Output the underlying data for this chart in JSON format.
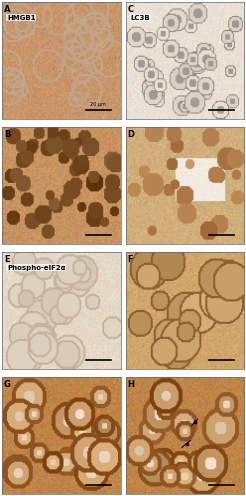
{
  "figure_width": 2.47,
  "figure_height": 5.0,
  "dpi": 100,
  "nrows": 4,
  "ncols": 2,
  "panels": [
    {
      "label": "A",
      "sublabel": "HMGB1",
      "scale_bar": "20 μm",
      "bg_color": "#c8956a",
      "cell_type": "flat_eosin",
      "stain_intensity": "medium",
      "has_nuclei": false,
      "scale_bar_pos": "bottom_right"
    },
    {
      "label": "C",
      "sublabel": "LC3B",
      "bg_color": "#e8ddd0",
      "cell_type": "round_light",
      "stain_intensity": "light",
      "has_nuclei": true,
      "scale_bar_pos": "bottom_right"
    },
    {
      "label": "B",
      "sublabel": "",
      "bg_color": "#b87040",
      "cell_type": "round_dark",
      "stain_intensity": "dark",
      "has_nuclei": true,
      "scale_bar_pos": "bottom_right"
    },
    {
      "label": "D",
      "sublabel": "",
      "bg_color": "#c89060",
      "cell_type": "mixed",
      "stain_intensity": "medium",
      "has_nuclei": false,
      "scale_bar_pos": "bottom_right"
    },
    {
      "label": "E",
      "sublabel": "Phospho-eIF2α",
      "bg_color": "#ddc8a8",
      "cell_type": "flat_light",
      "stain_intensity": "light",
      "has_nuclei": false,
      "scale_bar_pos": "bottom_right"
    },
    {
      "label": "F",
      "sublabel": "",
      "bg_color": "#c8904e",
      "cell_type": "flat_medium",
      "stain_intensity": "medium",
      "has_nuclei": false,
      "scale_bar_pos": "bottom_right"
    },
    {
      "label": "G",
      "sublabel": "",
      "bg_color": "#a06030",
      "cell_type": "round_intense",
      "stain_intensity": "intense",
      "has_nuclei": true,
      "scale_bar_pos": "bottom_right"
    },
    {
      "label": "H",
      "sublabel": "",
      "bg_color": "#b87840",
      "cell_type": "round_intense_annot",
      "stain_intensity": "intense",
      "has_nuclei": true,
      "scale_bar_pos": "bottom_right",
      "has_arrows": true
    }
  ],
  "border_color": "#888888",
  "label_color": "#000000",
  "label_fontsize": 6,
  "sublabel_fontsize": 5
}
